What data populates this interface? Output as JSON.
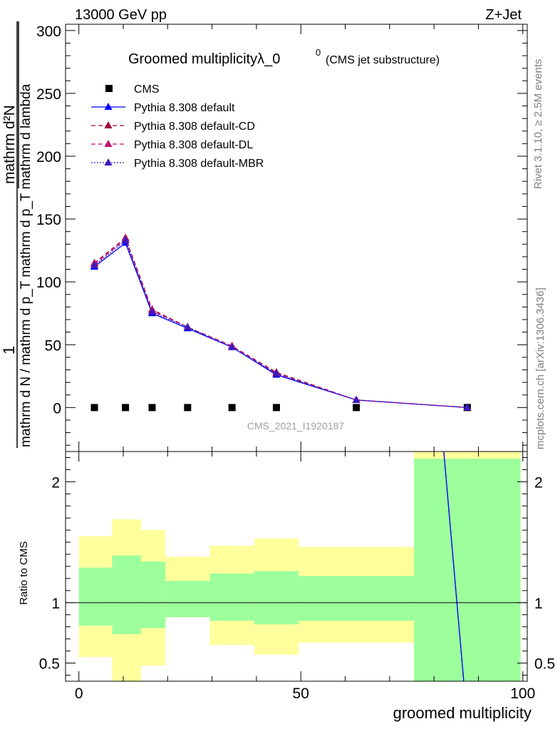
{
  "header": {
    "left_label": "13000 GeV pp",
    "right_label": "Z+Jet",
    "side_rivet": "Rivet 3.1.10, ≥ 2.5M events",
    "side_mcplots": "mcplots.cern.ch [arXiv:1306.3436]"
  },
  "chart_data": [
    {
      "type": "line",
      "title": "Groomed multiplicityλ_0",
      "title_sup": "0",
      "subtitle": "(CMS jet substructure)",
      "watermark": "CMS_2021_I1920187",
      "ylabel_top": "1",
      "ylabel_num": "mathrm d²N",
      "ylabel_den": "mathrm d N / mathrm d p_T mathrm d p_T mathrm d lambda",
      "xlabel": "groomed multiplicity",
      "xlim": [
        -3,
        101
      ],
      "ylim": [
        -35,
        305
      ],
      "yticks": [
        0,
        50,
        100,
        150,
        200,
        250,
        300
      ],
      "ytick_labels": [
        "0",
        "50",
        "100",
        "150",
        "200",
        "250",
        "300"
      ],
      "grid": false,
      "legend_position": "top-left",
      "x": [
        3.5,
        10.5,
        16.5,
        24.5,
        34.5,
        44.5,
        62.5,
        87.5
      ],
      "series": [
        {
          "name": "CMS",
          "color": "#000000",
          "marker": "square",
          "style": "points",
          "values": [
            0,
            0,
            0,
            0,
            0,
            0,
            0,
            0
          ]
        },
        {
          "name": "Pythia 8.308 default",
          "color": "#0000ff",
          "marker": "triangle",
          "style": "solid",
          "values": [
            112,
            131,
            75,
            63,
            48,
            26,
            6,
            0
          ]
        },
        {
          "name": "Pythia 8.308 default-CD",
          "color": "#a0003a",
          "marker": "triangle",
          "style": "dashed",
          "values": [
            115,
            135,
            78,
            64,
            49,
            28,
            6,
            0
          ]
        },
        {
          "name": "Pythia 8.308 default-DL",
          "color": "#c0107a",
          "marker": "triangle",
          "style": "dashed",
          "values": [
            114,
            134,
            77,
            64,
            49,
            27,
            6,
            0
          ]
        },
        {
          "name": "Pythia 8.308 default-MBR",
          "color": "#3a1ac0",
          "marker": "triangle",
          "style": "dotted",
          "values": [
            113,
            133,
            76,
            64,
            48,
            27,
            6,
            0
          ]
        }
      ]
    },
    {
      "type": "line",
      "ylabel": "Ratio to CMS",
      "xlabel": "groomed multiplicity",
      "xlim": [
        -3,
        101
      ],
      "ylim": [
        0.35,
        2.25
      ],
      "yticks": [
        0.5,
        1,
        2
      ],
      "ytick_labels": [
        "0.5",
        "1",
        "2"
      ],
      "xticks": [
        0,
        50,
        100
      ],
      "xtick_labels": [
        "0",
        "50",
        "100"
      ],
      "bins": [
        {
          "lo": 0,
          "hi": 7.5,
          "green_lo": 0.81,
          "green_hi": 1.29,
          "yellow_lo": 0.55,
          "yellow_hi": 1.55
        },
        {
          "lo": 7.5,
          "hi": 14,
          "green_lo": 0.74,
          "green_hi": 1.39,
          "yellow_lo": 0.35,
          "yellow_hi": 1.69
        },
        {
          "lo": 14,
          "hi": 19.5,
          "green_lo": 0.79,
          "green_hi": 1.34,
          "yellow_lo": 0.48,
          "yellow_hi": 1.6
        },
        {
          "lo": 19.5,
          "hi": 29.5,
          "green_lo": 0.88,
          "green_hi": 1.18,
          "yellow_lo": 0.88,
          "yellow_hi": 1.38
        },
        {
          "lo": 29.5,
          "hi": 39.5,
          "green_lo": 0.85,
          "green_hi": 1.24,
          "yellow_lo": 0.65,
          "yellow_hi": 1.47
        },
        {
          "lo": 39.5,
          "hi": 49.5,
          "green_lo": 0.82,
          "green_hi": 1.26,
          "yellow_lo": 0.57,
          "yellow_hi": 1.53
        },
        {
          "lo": 49.5,
          "hi": 75.5,
          "green_lo": 0.85,
          "green_hi": 1.22,
          "yellow_lo": 0.67,
          "yellow_hi": 1.46
        },
        {
          "lo": 75.5,
          "hi": 99.5,
          "green_lo": 0.35,
          "green_hi": 2.19,
          "yellow_lo": 0.35,
          "yellow_hi": 2.25
        }
      ],
      "ratio_line": {
        "x": [
          82.2,
          86.7
        ],
        "y": [
          2.25,
          0.35
        ],
        "color": "#0000ff"
      }
    }
  ],
  "colors": {
    "band_green": "#9cff9c",
    "band_yellow": "#ffff9c",
    "axis": "#000000",
    "side_text": "#7f7f7f",
    "watermark": "#a0a0a0"
  }
}
